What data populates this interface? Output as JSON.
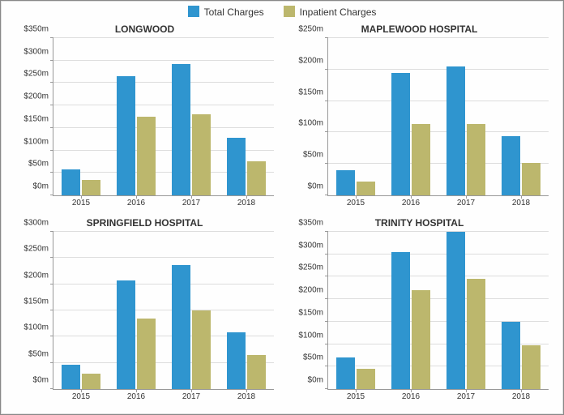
{
  "legend": [
    {
      "label": "Total Charges",
      "color": "#2f95cf"
    },
    {
      "label": "Inpatient Charges",
      "color": "#bcb76d"
    }
  ],
  "series_colors": [
    "#2f95cf",
    "#bcb76d"
  ],
  "layout": {
    "rows": 2,
    "cols": 2,
    "title_fontsize": 12,
    "title_fontweight": "bold",
    "axis_label_fontsize": 10,
    "bar_group_gap": 0.15,
    "bar_inner_gap": 0.04,
    "ytick_prefix": "$",
    "ytick_suffix": "m",
    "grid_color": "#dddddd",
    "axis_color": "#999999",
    "background_color": "#fefefe"
  },
  "panels": [
    {
      "title": "LONGWOOD",
      "categories": [
        "2015",
        "2016",
        "2017",
        "2018"
      ],
      "ylim": [
        0,
        350
      ],
      "ystep": 50,
      "series": [
        [
          57,
          265,
          293,
          128
        ],
        [
          35,
          175,
          180,
          75
        ]
      ]
    },
    {
      "title": "MAPLEWOOD HOSPITAL",
      "categories": [
        "2015",
        "2016",
        "2017",
        "2018"
      ],
      "ylim": [
        0,
        250
      ],
      "ystep": 50,
      "series": [
        [
          40,
          195,
          205,
          94
        ],
        [
          22,
          114,
          114,
          52
        ]
      ]
    },
    {
      "title": "SPRINGFIELD HOSPITAL",
      "categories": [
        "2015",
        "2016",
        "2017",
        "2018"
      ],
      "ylim": [
        0,
        300
      ],
      "ystep": 50,
      "series": [
        [
          47,
          208,
          237,
          108
        ],
        [
          30,
          135,
          150,
          65
        ]
      ]
    },
    {
      "title": "TRINITY HOSPITAL",
      "categories": [
        "2015",
        "2016",
        "2017",
        "2018"
      ],
      "ylim": [
        0,
        350
      ],
      "ystep": 50,
      "series": [
        [
          70,
          305,
          350,
          150
        ],
        [
          45,
          220,
          245,
          98
        ]
      ]
    }
  ]
}
